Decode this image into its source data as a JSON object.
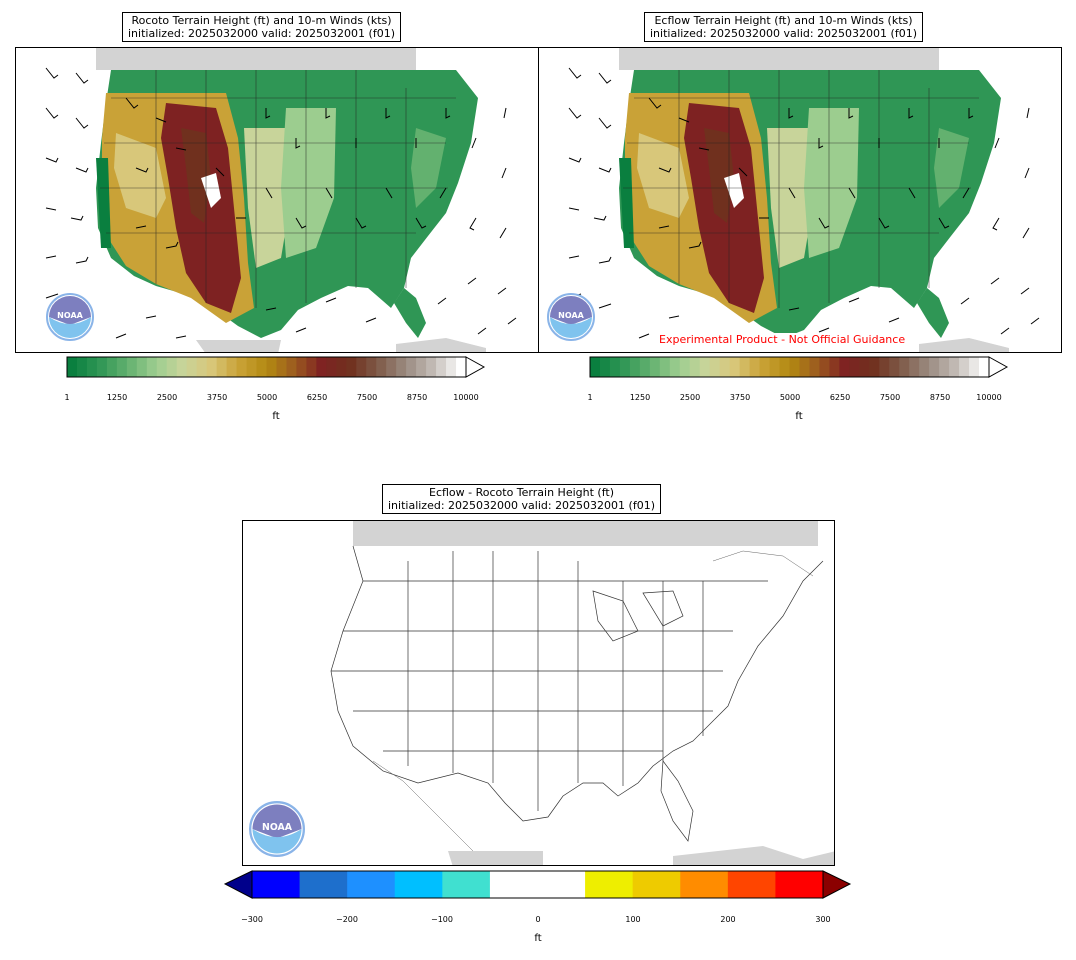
{
  "panels": [
    {
      "title_line1": "Rocoto Terrain Height (ft) and 10-m Winds (kts)",
      "title_line2": "initialized: 2025032000 valid: 2025032001 (f01)",
      "colorbar_ticks": [
        "1",
        "1250",
        "2500",
        "3750",
        "5000",
        "6250",
        "7500",
        "8750",
        "10000"
      ],
      "units": "ft"
    },
    {
      "title_line1": "Ecflow Terrain Height (ft) and 10-m Winds (kts)",
      "title_line2": "initialized: 2025032000 valid: 2025032001 (f01)",
      "colorbar_ticks": [
        "1",
        "1250",
        "2500",
        "3750",
        "5000",
        "6250",
        "7500",
        "8750",
        "10000"
      ],
      "units": "ft",
      "watermark": "Experimental Product - Not Official Guidance"
    },
    {
      "title_line1": "Ecflow - Rocoto Terrain Height (ft)",
      "title_line2": "initialized: 2025032000 valid: 2025032001 (f01)",
      "colorbar_ticks": [
        "−300",
        "−200",
        "−100",
        "0",
        "100",
        "200",
        "300"
      ],
      "units": "ft"
    }
  ],
  "logo_text": "NOAA",
  "colors": {
    "land_gray": "#d3d3d3",
    "terrain_scale": [
      "#0a7f3f",
      "#2f9655",
      "#63b16f",
      "#9ccd8f",
      "#c8d49a",
      "#d8c77a",
      "#c9a237",
      "#b38a12",
      "#9c5b1f",
      "#7e2222",
      "#70301e",
      "#7e5a48",
      "#9a8a80",
      "#c3bcb6",
      "#ffffff"
    ],
    "diff_scale": [
      "#00008b",
      "#0000ff",
      "#1e6fcc",
      "#1e90ff",
      "#00bfff",
      "#40e0d0",
      "#ffffff",
      "#ffffff",
      "#eeee00",
      "#eecb00",
      "#ff8c00",
      "#ff4500",
      "#ff0000",
      "#8b0000"
    ]
  }
}
